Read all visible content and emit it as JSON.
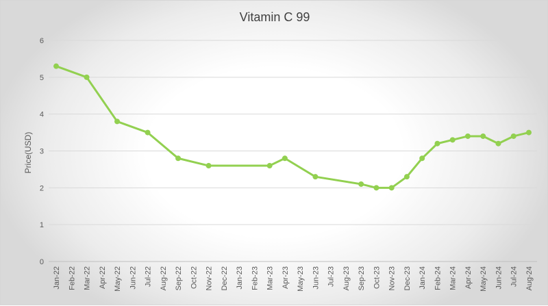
{
  "chart_data": {
    "type": "line",
    "title": "Vitamin C 99",
    "xlabel": "",
    "ylabel": "Price(USD)",
    "ylim": [
      0,
      6
    ],
    "yticks": [
      0,
      1,
      2,
      3,
      4,
      5,
      6
    ],
    "grid": true,
    "legend": "none",
    "categories": [
      "Jan-22",
      "Feb-22",
      "Mar-22",
      "Apr-22",
      "May-22",
      "Jun-22",
      "Jul-22",
      "Aug-22",
      "Sep-22",
      "Oct-22",
      "Nov-22",
      "Dec-22",
      "Jan-23",
      "Feb-23",
      "Mar-23",
      "Apr-23",
      "May-23",
      "Jun-23",
      "Jul-23",
      "Aug-23",
      "Sep-23",
      "Oct-23",
      "Nov-23",
      "Dec-23",
      "Jan-24",
      "Feb-24",
      "Mar-24",
      "Apr-24",
      "May-24",
      "Jun-24",
      "Jul-24",
      "Aug-24"
    ],
    "series": [
      {
        "color": "#92d050",
        "values": [
          5.3,
          null,
          5.0,
          null,
          3.8,
          null,
          3.5,
          null,
          2.8,
          null,
          2.6,
          null,
          null,
          null,
          2.6,
          2.8,
          null,
          2.3,
          null,
          null,
          2.1,
          2.0,
          2.0,
          2.3,
          2.8,
          3.2,
          3.3,
          3.4,
          3.4,
          3.2,
          3.4,
          3.5
        ]
      }
    ]
  }
}
